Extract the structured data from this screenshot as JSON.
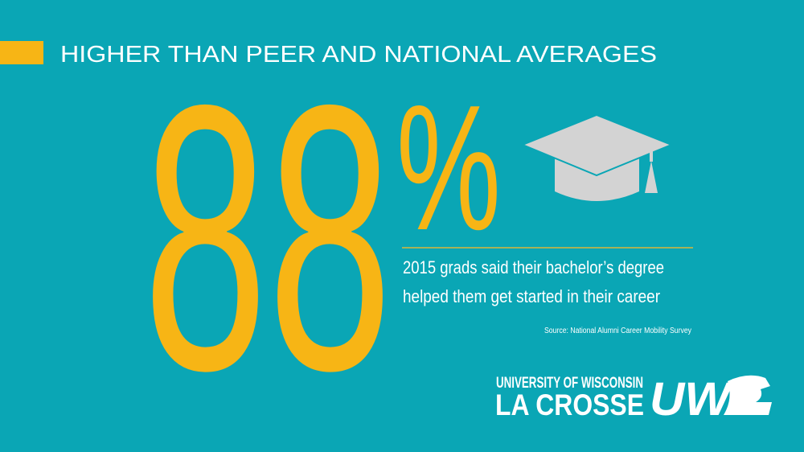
{
  "header": {
    "title": "HIGHER THAN PEER AND NATIONAL AVERAGES"
  },
  "stat": {
    "number": "88",
    "symbol": "%"
  },
  "description": {
    "lines": [
      "2015 grads said their bachelor’s degree",
      "helped them get started in their career"
    ]
  },
  "source": "Source: National Alumni Career Mobility Survey",
  "logo": {
    "line1": "UNIVERSITY OF WISCONSIN",
    "line2": "LA CROSSE",
    "mark": "UW"
  }
}
